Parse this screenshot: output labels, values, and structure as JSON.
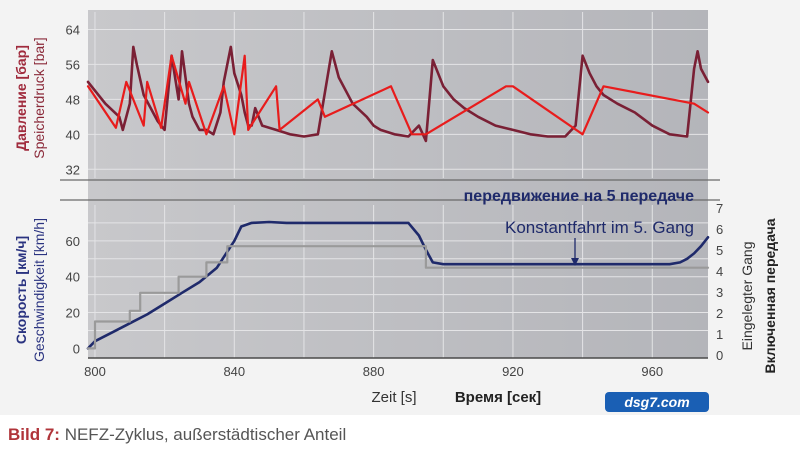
{
  "chart_data": [
    {
      "type": "line",
      "ylabel_de": "Speicherdruck [bar]",
      "ylabel_ru": "Давление [бар]",
      "yticks": [
        32,
        40,
        48,
        56,
        64
      ],
      "ylim": [
        30,
        68
      ],
      "xlim": [
        798,
        976
      ],
      "grid": true,
      "series": [
        {
          "color": "#7a2035",
          "x": [
            798,
            803,
            807,
            808,
            810,
            811,
            812,
            814,
            816,
            818,
            820,
            822,
            824,
            825,
            826,
            827,
            828,
            830,
            832,
            834,
            836,
            837,
            839,
            840,
            842,
            843,
            844,
            845,
            846,
            848,
            852,
            856,
            860,
            864,
            868,
            870,
            874,
            878,
            880,
            882,
            886,
            890,
            893,
            895,
            897,
            898,
            900,
            903,
            906,
            910,
            915,
            920,
            925,
            930,
            935,
            938,
            940,
            942,
            944,
            946,
            950,
            955,
            960,
            965,
            970,
            972,
            973,
            974,
            976
          ],
          "y": [
            52,
            47,
            44,
            41,
            47,
            60,
            56,
            49,
            46,
            43,
            41,
            58,
            48,
            59,
            53,
            47,
            44,
            41,
            41,
            40,
            45,
            52,
            60,
            54,
            49,
            45,
            42,
            42,
            46,
            42,
            41,
            40,
            39.5,
            40,
            59,
            53,
            47,
            44,
            42,
            41,
            40,
            39.5,
            42,
            38.5,
            57,
            55,
            51,
            48,
            46,
            44,
            42,
            41,
            40,
            39.5,
            39.5,
            42,
            58,
            54,
            51,
            49,
            47,
            45,
            42,
            40,
            39.5,
            55,
            59,
            55,
            52
          ]
        },
        {
          "color": "#e81c1c",
          "x": [
            798,
            806,
            809,
            814,
            815,
            819,
            822,
            826,
            827,
            832,
            837,
            840,
            843,
            844,
            852,
            853,
            864,
            866,
            885,
            891,
            895,
            918,
            920,
            940,
            946,
            972,
            976
          ],
          "y": [
            51,
            41.5,
            52,
            42,
            52,
            41.5,
            58,
            47,
            52,
            40,
            51,
            40,
            58,
            41,
            51,
            41,
            48,
            44,
            51,
            40,
            40,
            51,
            51,
            40,
            51,
            47,
            45
          ]
        }
      ]
    },
    {
      "type": "line",
      "ylabel_de": "Geschwindigkeit [km/h]",
      "ylabel_ru": "Скорость [км/ч]",
      "y2label_de": "Eingelegter Gang",
      "y2label_ru": "Включенная передача",
      "xlabel_de": "Zeit [s]",
      "xlabel_ru": "Время [сек]",
      "xticks": [
        800,
        840,
        880,
        920,
        960
      ],
      "yticks": [
        0,
        20,
        40,
        60
      ],
      "y2ticks": [
        0,
        1,
        2,
        3,
        4,
        5,
        6,
        7
      ],
      "ylim": [
        -2,
        80
      ],
      "xlim": [
        798,
        976
      ],
      "grid": true,
      "annotation_ru": "передвижение на 5 передаче",
      "annotation_de": "Konstantfahrt im 5. Gang",
      "series": [
        {
          "color": "#1f2a6b",
          "x": [
            798,
            800,
            805,
            810,
            815,
            820,
            825,
            830,
            835,
            840,
            842,
            845,
            850,
            855,
            860,
            870,
            880,
            885,
            890,
            893,
            895,
            897,
            900,
            910,
            920,
            930,
            940,
            950,
            960,
            965,
            968,
            970,
            972,
            974,
            976
          ],
          "y": [
            0,
            4,
            9,
            14,
            19,
            25,
            31,
            37,
            45,
            60,
            68,
            70,
            70.5,
            70,
            70,
            70,
            70,
            70,
            70,
            63,
            55,
            48,
            47,
            47,
            47,
            47,
            47,
            47,
            47,
            47,
            48,
            50,
            53,
            57,
            62
          ]
        },
        {
          "color": "#9a9a9a",
          "x": [
            798,
            800,
            800,
            810,
            810,
            813,
            813,
            824,
            824,
            832,
            832,
            838,
            838,
            895,
            895,
            976
          ],
          "y": [
            0,
            0,
            15,
            15,
            21,
            21,
            31,
            31,
            40,
            40,
            48,
            48,
            57,
            57,
            45,
            45
          ]
        }
      ]
    }
  ],
  "watermark": "dsg7.com",
  "caption": {
    "bold": "Bild 7:",
    "text": "NEFZ-Zyklus, außerstädtischer Anteil"
  }
}
